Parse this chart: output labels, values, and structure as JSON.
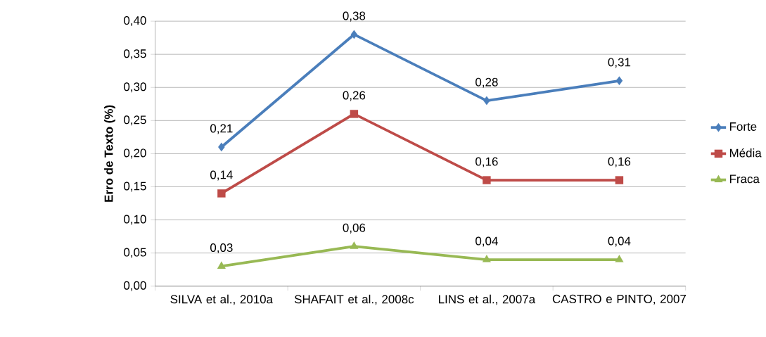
{
  "chart_data": {
    "type": "line",
    "ylabel": "Erro de Texto (%)",
    "categories": [
      "SILVA et al., 2010a",
      "SHAFAIT et al., 2008c",
      "LINS et al., 2007a",
      "CASTRO e PINTO, 2007"
    ],
    "series": [
      {
        "name": "Forte",
        "color": "#4a7ebb",
        "marker": "diamond",
        "values": [
          0.21,
          0.38,
          0.28,
          0.31
        ],
        "value_labels": [
          "0,21",
          "0,38",
          "0,28",
          "0,31"
        ]
      },
      {
        "name": "Média",
        "color": "#be4b48",
        "marker": "square",
        "values": [
          0.14,
          0.26,
          0.16,
          0.16
        ],
        "value_labels": [
          "0,14",
          "0,26",
          "0,16",
          "0,16"
        ]
      },
      {
        "name": "Fraca",
        "color": "#98b954",
        "marker": "triangle",
        "values": [
          0.03,
          0.06,
          0.04,
          0.04
        ],
        "value_labels": [
          "0,03",
          "0,06",
          "0,04",
          "0,04"
        ]
      }
    ],
    "ylim": [
      0,
      0.4
    ],
    "yticks": [
      {
        "value": 0,
        "label": "0,00"
      },
      {
        "value": 0.05,
        "label": "0,05"
      },
      {
        "value": 0.1,
        "label": "0,10"
      },
      {
        "value": 0.15,
        "label": "0,15"
      },
      {
        "value": 0.2,
        "label": "0,20"
      },
      {
        "value": 0.25,
        "label": "0,25"
      },
      {
        "value": 0.3,
        "label": "0,30"
      },
      {
        "value": 0.35,
        "label": "0,35"
      },
      {
        "value": 0.4,
        "label": "0,40"
      }
    ],
    "grid": "y",
    "legend": "right"
  }
}
